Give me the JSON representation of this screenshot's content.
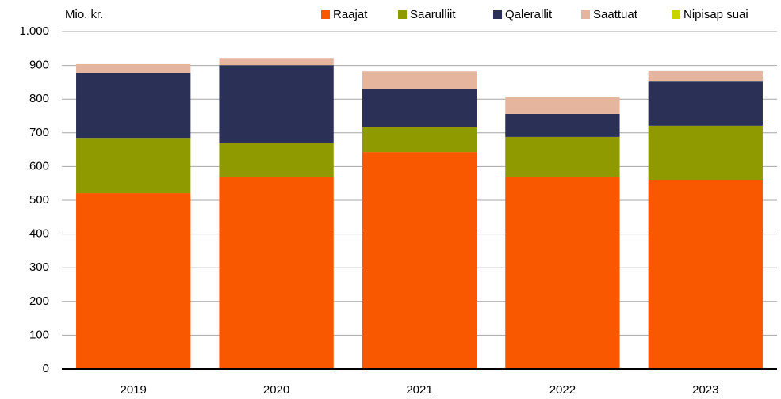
{
  "chart_data": {
    "type": "bar",
    "stacked": true,
    "y_label": "Mio. kr.",
    "categories": [
      "2019",
      "2020",
      "2021",
      "2022",
      "2023"
    ],
    "series": [
      {
        "name": "Raajat",
        "color": "#f95700",
        "values": [
          521,
          570,
          643,
          570,
          561
        ]
      },
      {
        "name": "Saarulliit",
        "color": "#8f9a00",
        "values": [
          164,
          99,
          73,
          118,
          160
        ]
      },
      {
        "name": "Qalerallit",
        "color": "#2b3057",
        "values": [
          193,
          232,
          115,
          68,
          133
        ]
      },
      {
        "name": "Saattuat",
        "color": "#e6b59e",
        "values": [
          26,
          21,
          51,
          51,
          29
        ]
      },
      {
        "name": "Nipisap suai",
        "color": "#c8d400",
        "values": [
          0,
          0,
          0,
          0,
          0
        ]
      }
    ],
    "ylim": [
      0,
      1000
    ],
    "yticks": [
      0,
      100,
      200,
      300,
      400,
      500,
      600,
      700,
      800,
      900,
      {
        "value": 1000,
        "label": "1.000"
      }
    ],
    "grid": true,
    "legend": "top"
  }
}
